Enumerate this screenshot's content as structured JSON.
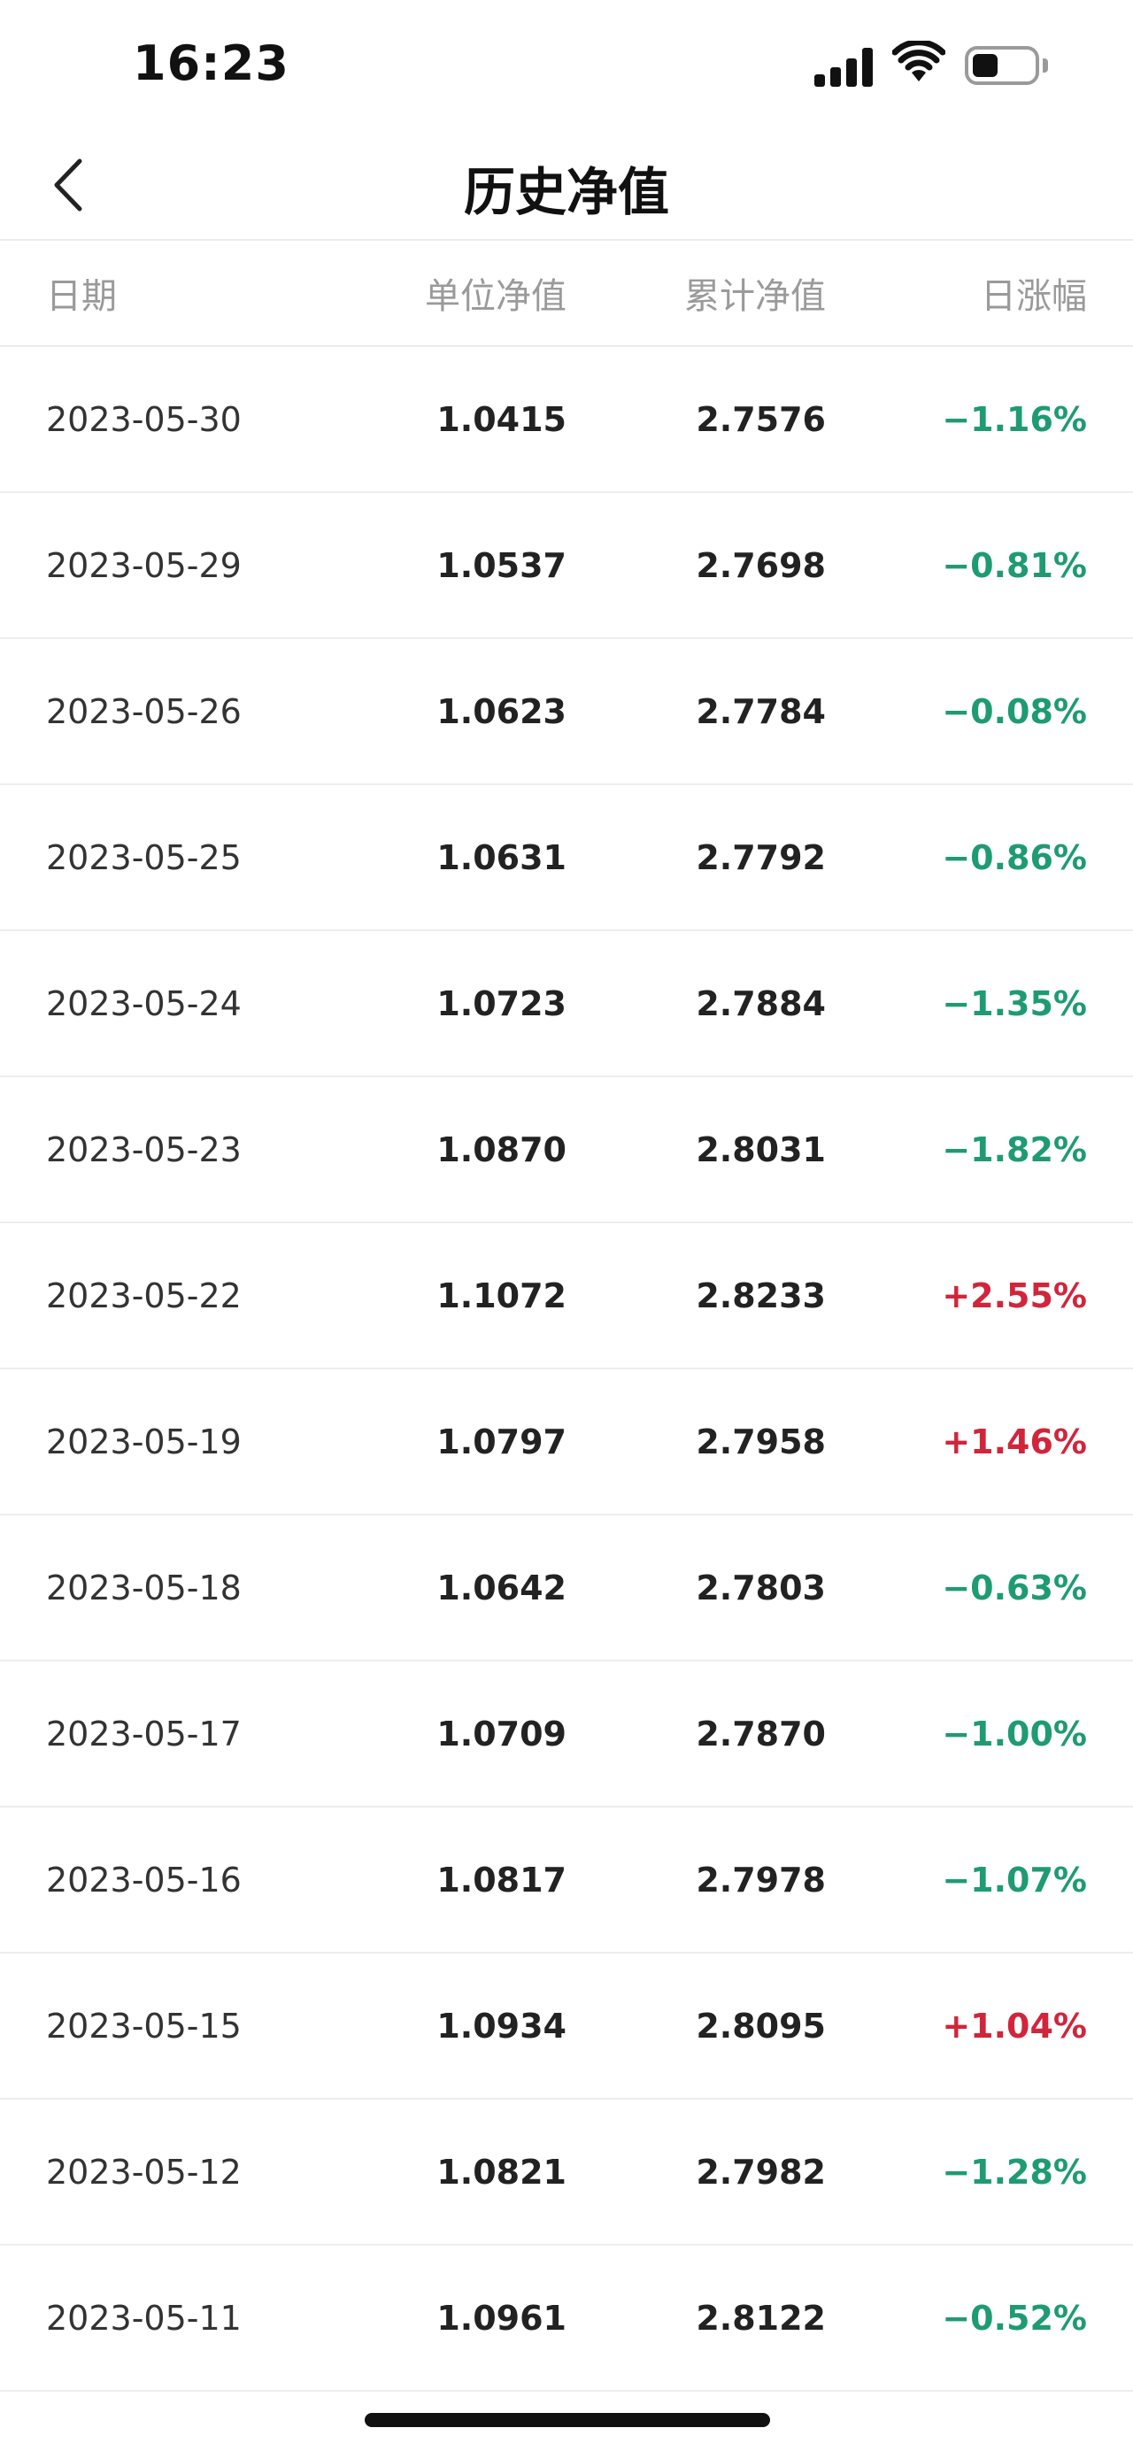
{
  "status_bar": {
    "time": "16:23"
  },
  "nav": {
    "title": "历史净值",
    "back_icon": "chevron-left-icon"
  },
  "table": {
    "headers": {
      "date": "日期",
      "unit_nav": "单位净值",
      "cumulative_nav": "累计净值",
      "daily_change": "日涨幅"
    },
    "rows": [
      {
        "date": "2023-05-30",
        "unit_nav": "1.0415",
        "cumulative_nav": "2.7576",
        "daily_change": "−1.16%",
        "direction": "down"
      },
      {
        "date": "2023-05-29",
        "unit_nav": "1.0537",
        "cumulative_nav": "2.7698",
        "daily_change": "−0.81%",
        "direction": "down"
      },
      {
        "date": "2023-05-26",
        "unit_nav": "1.0623",
        "cumulative_nav": "2.7784",
        "daily_change": "−0.08%",
        "direction": "down"
      },
      {
        "date": "2023-05-25",
        "unit_nav": "1.0631",
        "cumulative_nav": "2.7792",
        "daily_change": "−0.86%",
        "direction": "down"
      },
      {
        "date": "2023-05-24",
        "unit_nav": "1.0723",
        "cumulative_nav": "2.7884",
        "daily_change": "−1.35%",
        "direction": "down"
      },
      {
        "date": "2023-05-23",
        "unit_nav": "1.0870",
        "cumulative_nav": "2.8031",
        "daily_change": "−1.82%",
        "direction": "down"
      },
      {
        "date": "2023-05-22",
        "unit_nav": "1.1072",
        "cumulative_nav": "2.8233",
        "daily_change": "+2.55%",
        "direction": "up"
      },
      {
        "date": "2023-05-19",
        "unit_nav": "1.0797",
        "cumulative_nav": "2.7958",
        "daily_change": "+1.46%",
        "direction": "up"
      },
      {
        "date": "2023-05-18",
        "unit_nav": "1.0642",
        "cumulative_nav": "2.7803",
        "daily_change": "−0.63%",
        "direction": "down"
      },
      {
        "date": "2023-05-17",
        "unit_nav": "1.0709",
        "cumulative_nav": "2.7870",
        "daily_change": "−1.00%",
        "direction": "down"
      },
      {
        "date": "2023-05-16",
        "unit_nav": "1.0817",
        "cumulative_nav": "2.7978",
        "daily_change": "−1.07%",
        "direction": "down"
      },
      {
        "date": "2023-05-15",
        "unit_nav": "1.0934",
        "cumulative_nav": "2.8095",
        "daily_change": "+1.04%",
        "direction": "up"
      },
      {
        "date": "2023-05-12",
        "unit_nav": "1.0821",
        "cumulative_nav": "2.7982",
        "daily_change": "−1.28%",
        "direction": "down"
      },
      {
        "date": "2023-05-11",
        "unit_nav": "1.0961",
        "cumulative_nav": "2.8122",
        "daily_change": "−0.52%",
        "direction": "down"
      }
    ]
  },
  "colors": {
    "down": "#1e9b73",
    "up": "#d1253b",
    "header_text": "#9a9a9a",
    "divider": "#ececec"
  }
}
